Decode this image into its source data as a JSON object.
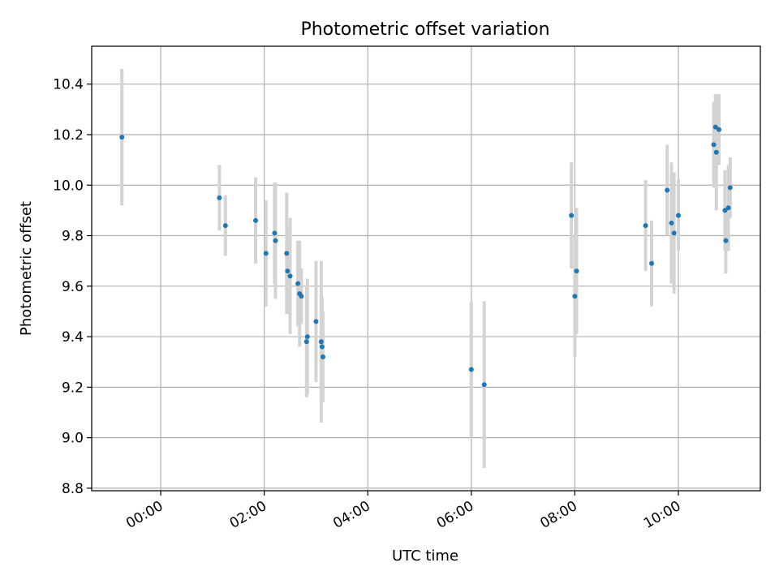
{
  "chart_data": {
    "type": "scatter",
    "title": "Photometric offset variation",
    "xlabel": "UTC time",
    "ylabel": "Photometric offset",
    "x_unit": "UTC time (HH:MM)",
    "xlim": [
      "-01:20",
      "11:35"
    ],
    "ylim": [
      8.79,
      10.55
    ],
    "x_ticks": [
      "00:00",
      "02:00",
      "04:00",
      "06:00",
      "08:00",
      "10:00"
    ],
    "y_ticks": [
      "8.8",
      "9.0",
      "9.2",
      "9.4",
      "9.6",
      "9.8",
      "10.0",
      "10.2",
      "10.4"
    ],
    "grid": true,
    "marker_color": "#1f77b4",
    "errorbar_color": "#d3d3d3",
    "points": [
      {
        "x": "-00:45",
        "y": 10.19,
        "err": 0.27
      },
      {
        "x": "01:08",
        "y": 9.95,
        "err": 0.13
      },
      {
        "x": "01:15",
        "y": 9.84,
        "err": 0.12
      },
      {
        "x": "01:50",
        "y": 9.86,
        "err": 0.17
      },
      {
        "x": "02:02",
        "y": 9.73,
        "err": 0.21
      },
      {
        "x": "02:12",
        "y": 9.81,
        "err": 0.2
      },
      {
        "x": "02:13",
        "y": 9.78,
        "err": 0.23
      },
      {
        "x": "02:26",
        "y": 9.73,
        "err": 0.24
      },
      {
        "x": "02:27",
        "y": 9.66,
        "err": 0.17
      },
      {
        "x": "02:30",
        "y": 9.64,
        "err": 0.23
      },
      {
        "x": "02:39",
        "y": 9.61,
        "err": 0.17
      },
      {
        "x": "02:41",
        "y": 9.57,
        "err": 0.21
      },
      {
        "x": "02:43",
        "y": 9.56,
        "err": 0.11
      },
      {
        "x": "02:49",
        "y": 9.38,
        "err": 0.22
      },
      {
        "x": "02:50",
        "y": 9.4,
        "err": 0.23
      },
      {
        "x": "03:00",
        "y": 9.46,
        "err": 0.24
      },
      {
        "x": "03:06",
        "y": 9.38,
        "err": 0.32
      },
      {
        "x": "03:07",
        "y": 9.36,
        "err": 0.2
      },
      {
        "x": "03:08",
        "y": 9.32,
        "err": 0.18
      },
      {
        "x": "06:00",
        "y": 9.27,
        "err": 0.27
      },
      {
        "x": "06:15",
        "y": 9.21,
        "err": 0.33
      },
      {
        "x": "07:56",
        "y": 9.88,
        "err": 0.21
      },
      {
        "x": "08:00",
        "y": 9.56,
        "err": 0.24
      },
      {
        "x": "08:02",
        "y": 9.66,
        "err": 0.25
      },
      {
        "x": "09:22",
        "y": 9.84,
        "err": 0.18
      },
      {
        "x": "09:29",
        "y": 9.69,
        "err": 0.17
      },
      {
        "x": "09:47",
        "y": 9.98,
        "err": 0.18
      },
      {
        "x": "09:52",
        "y": 9.85,
        "err": 0.24
      },
      {
        "x": "09:55",
        "y": 9.81,
        "err": 0.24
      },
      {
        "x": "10:00",
        "y": 9.88,
        "err": 0.14
      },
      {
        "x": "10:41",
        "y": 10.16,
        "err": 0.17
      },
      {
        "x": "10:43",
        "y": 10.23,
        "err": 0.13
      },
      {
        "x": "10:44",
        "y": 10.13,
        "err": 0.23
      },
      {
        "x": "10:47",
        "y": 10.22,
        "err": 0.14
      },
      {
        "x": "10:54",
        "y": 9.9,
        "err": 0.16
      },
      {
        "x": "10:55",
        "y": 9.78,
        "err": 0.13
      },
      {
        "x": "10:58",
        "y": 9.91,
        "err": 0.17
      },
      {
        "x": "11:00",
        "y": 9.99,
        "err": 0.12
      }
    ]
  }
}
